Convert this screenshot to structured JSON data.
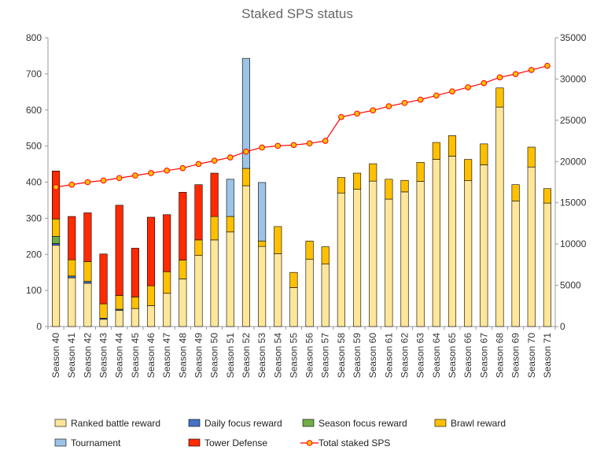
{
  "chart_data": {
    "type": "bar",
    "stacked": true,
    "title": "Staked SPS status",
    "categories": [
      "Season 40",
      "Season 41",
      "Season 42",
      "Season 43",
      "Season 44",
      "Season 45",
      "Season 46",
      "Season 47",
      "Season 48",
      "Season 49",
      "Season 50",
      "Season 51",
      "Season 52",
      "Season 53",
      "Season 54",
      "Season 55",
      "Season 56",
      "Season 57",
      "Season 58",
      "Season 59",
      "Season 60",
      "Season 61",
      "Season 62",
      "Season 63",
      "Season 64",
      "Season 65",
      "Season 66",
      "Season 67",
      "Season 68",
      "Season 69",
      "Season 70",
      "Season 71"
    ],
    "y_left": {
      "min": 0,
      "max": 800,
      "ticks": [
        0,
        100,
        200,
        300,
        400,
        500,
        600,
        700,
        800
      ]
    },
    "y_right": {
      "min": 0,
      "max": 35000,
      "ticks": [
        0,
        5000,
        10000,
        15000,
        20000,
        25000,
        30000,
        35000
      ]
    },
    "grid": false,
    "legend_position": "bottom",
    "series": [
      {
        "name": "Ranked battle reward",
        "color": "#FFE699",
        "axis": "left",
        "values": [
          225,
          135,
          120,
          20,
          45,
          50,
          58,
          92,
          132,
          197,
          240,
          262,
          390,
          222,
          202,
          108,
          186,
          173,
          370,
          380,
          403,
          353,
          373,
          402,
          463,
          472,
          404,
          448,
          608,
          348,
          442,
          342
        ]
      },
      {
        "name": "Daily focus reward",
        "color": "#4472C4",
        "axis": "left",
        "values": [
          5,
          5,
          5,
          3,
          3,
          0,
          0,
          0,
          0,
          0,
          0,
          0,
          0,
          0,
          0,
          0,
          0,
          0,
          0,
          0,
          0,
          0,
          0,
          0,
          0,
          0,
          0,
          0,
          0,
          0,
          0,
          0
        ]
      },
      {
        "name": "Season focus reward",
        "color": "#70AD47",
        "axis": "left",
        "values": [
          20,
          0,
          0,
          0,
          0,
          0,
          0,
          0,
          0,
          0,
          0,
          0,
          0,
          0,
          0,
          0,
          0,
          0,
          0,
          0,
          0,
          0,
          0,
          0,
          0,
          0,
          0,
          0,
          0,
          0,
          0,
          0
        ]
      },
      {
        "name": "Brawl reward",
        "color": "#FFC000",
        "axis": "left",
        "values": [
          48,
          45,
          55,
          40,
          38,
          32,
          55,
          60,
          52,
          43,
          65,
          43,
          48,
          15,
          75,
          42,
          51,
          48,
          43,
          45,
          48,
          55,
          32,
          53,
          47,
          57,
          59,
          58,
          53,
          45,
          55,
          40
        ]
      },
      {
        "name": "Tournament",
        "color": "#9DC3E6",
        "axis": "left",
        "values": [
          0,
          0,
          0,
          0,
          0,
          0,
          0,
          0,
          0,
          0,
          0,
          103,
          305,
          162,
          0,
          0,
          0,
          0,
          0,
          0,
          0,
          0,
          0,
          0,
          0,
          0,
          0,
          0,
          0,
          0,
          0,
          0
        ]
      },
      {
        "name": "Tower Defense",
        "color": "#FF2A00",
        "axis": "left",
        "values": [
          133,
          120,
          135,
          138,
          250,
          135,
          190,
          158,
          188,
          153,
          120,
          0,
          0,
          0,
          0,
          0,
          0,
          0,
          0,
          0,
          0,
          0,
          0,
          0,
          0,
          0,
          0,
          0,
          0,
          0,
          0,
          0
        ]
      },
      {
        "name": "Total staked SPS",
        "color": "#FF0000",
        "marker_color": "#FFC000",
        "axis": "right",
        "type": "line",
        "values": [
          16900,
          17200,
          17500,
          17700,
          18000,
          18300,
          18600,
          18900,
          19200,
          19700,
          20100,
          20500,
          21200,
          21700,
          21900,
          22000,
          22200,
          22500,
          25400,
          25800,
          26200,
          26700,
          27100,
          27500,
          28000,
          28500,
          29000,
          29500,
          30200,
          30600,
          31100,
          31600
        ]
      }
    ]
  }
}
